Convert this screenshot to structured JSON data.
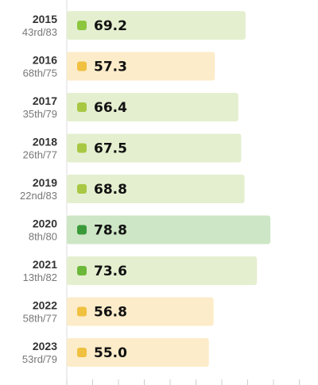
{
  "chart_data": {
    "type": "bar",
    "orientation": "horizontal",
    "title": "",
    "xlabel": "",
    "ylabel": "",
    "xlim": [
      0,
      100
    ],
    "grid": false,
    "legend": "none",
    "categories": [
      "2015",
      "2016",
      "2017",
      "2018",
      "2019",
      "2020",
      "2021",
      "2022",
      "2023"
    ],
    "ranks": [
      "43rd/83",
      "68th/75",
      "35th/79",
      "26th/77",
      "22nd/83",
      "8th/80",
      "13th/82",
      "58th/77",
      "53rd/79"
    ],
    "values": [
      69.2,
      57.3,
      66.4,
      67.5,
      68.8,
      78.8,
      73.6,
      56.8,
      55.0
    ],
    "value_labels": [
      "69.2",
      "57.3",
      "66.4",
      "67.5",
      "68.8",
      "78.8",
      "73.6",
      "56.8",
      "55.0"
    ],
    "colors": {
      "bar_fill": [
        "#e4efcf",
        "#fcecc9",
        "#e4efcf",
        "#e4efcf",
        "#e4efcf",
        "#cde6c5",
        "#e4efcf",
        "#fcecc9",
        "#fcecc9"
      ],
      "marker": [
        "#8cc63f",
        "#f0c040",
        "#a8c843",
        "#a8c843",
        "#a8c843",
        "#3a9a3a",
        "#6cb83a",
        "#f0c040",
        "#f0c040"
      ],
      "axis": "#cccccc"
    }
  }
}
